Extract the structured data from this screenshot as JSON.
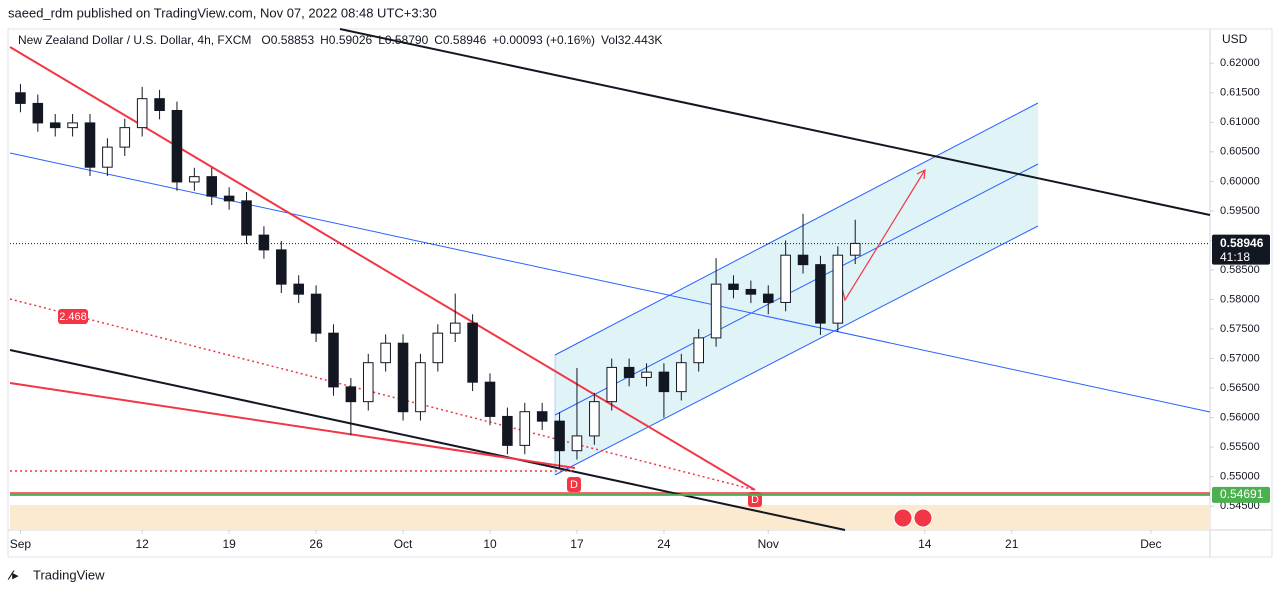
{
  "header": {
    "publisher": "saeed_rdm published on TradingView.com, Nov 07, 2022 08:48 UTC+3:30"
  },
  "footer": {
    "brand": "TradingView"
  },
  "chart_data": {
    "type": "candlestick",
    "title": "New Zealand Dollar / U.S. Dollar, 4h, FXCM",
    "ohlc_labels": [
      "O0.58853",
      "H0.59026",
      "L0.58790",
      "C0.58946",
      "+0.00093 (+0.16%)",
      "Vol32.443K"
    ],
    "currency": "USD",
    "up_color": "#ffffff",
    "down_color": "#131722",
    "open": [
      0.615,
      0.6132,
      0.6099,
      0.6091,
      0.6099,
      0.6024,
      0.6058,
      0.6091,
      0.614,
      0.612,
      0.5999,
      0.6008,
      0.5975,
      0.5967,
      0.5909,
      0.5884,
      0.5826,
      0.5809,
      0.5743,
      0.5652,
      0.5627,
      0.5693,
      0.5726,
      0.561,
      0.5693,
      0.5743,
      0.576,
      0.566,
      0.5602,
      0.5553,
      0.561,
      0.5594,
      0.5544,
      0.5569,
      0.5627,
      0.5685,
      0.5668,
      0.5677,
      0.5644,
      0.5693,
      0.5735,
      0.5826,
      0.5817,
      0.5809,
      0.5795,
      0.5875,
      0.5859,
      0.576,
      0.5875
    ],
    "high": [
      0.6165,
      0.6147,
      0.6114,
      0.6114,
      0.6114,
      0.6073,
      0.6106,
      0.616,
      0.6155,
      0.6135,
      0.6023,
      0.6023,
      0.599,
      0.5982,
      0.5924,
      0.5899,
      0.5841,
      0.5824,
      0.5758,
      0.5667,
      0.5708,
      0.5741,
      0.5741,
      0.5708,
      0.5758,
      0.581,
      0.5775,
      0.5675,
      0.5617,
      0.5625,
      0.5625,
      0.5609,
      0.5684,
      0.5642,
      0.57,
      0.57,
      0.5692,
      0.5692,
      0.5708,
      0.575,
      0.587,
      0.5841,
      0.5832,
      0.5824,
      0.59,
      0.5945,
      0.5874,
      0.589,
      0.5935
    ],
    "low": [
      0.6117,
      0.6084,
      0.6076,
      0.6076,
      0.6009,
      0.6009,
      0.6043,
      0.6076,
      0.6105,
      0.5984,
      0.5984,
      0.596,
      0.5952,
      0.5894,
      0.5869,
      0.5811,
      0.5794,
      0.5728,
      0.5637,
      0.557,
      0.5612,
      0.5678,
      0.5595,
      0.5595,
      0.5678,
      0.5728,
      0.5645,
      0.5587,
      0.5538,
      0.5538,
      0.5579,
      0.5512,
      0.5529,
      0.5554,
      0.5612,
      0.5653,
      0.5653,
      0.56,
      0.5629,
      0.5678,
      0.572,
      0.5802,
      0.5794,
      0.5775,
      0.578,
      0.5844,
      0.574,
      0.5745,
      0.586
    ],
    "close": [
      0.6132,
      0.6099,
      0.6091,
      0.6099,
      0.6024,
      0.6058,
      0.6091,
      0.614,
      0.612,
      0.5999,
      0.6008,
      0.5975,
      0.5967,
      0.5909,
      0.5884,
      0.5826,
      0.5809,
      0.5743,
      0.5652,
      0.5627,
      0.5693,
      0.5726,
      0.561,
      0.5693,
      0.5743,
      0.576,
      0.566,
      0.5602,
      0.5553,
      0.561,
      0.5594,
      0.5544,
      0.5569,
      0.5627,
      0.5685,
      0.5668,
      0.5677,
      0.5644,
      0.5693,
      0.5735,
      0.5826,
      0.5817,
      0.5809,
      0.5795,
      0.5875,
      0.5859,
      0.576,
      0.5875,
      0.5895
    ],
    "xlim": [
      -0.6,
      68.4
    ],
    "xticks": [
      {
        "value": 0,
        "label": "Sep"
      },
      {
        "value": 7,
        "label": "12"
      },
      {
        "value": 12,
        "label": "19"
      },
      {
        "value": 17,
        "label": "26"
      },
      {
        "value": 22,
        "label": "Oct"
      },
      {
        "value": 27,
        "label": "10"
      },
      {
        "value": 32,
        "label": "17"
      },
      {
        "value": 37,
        "label": "24"
      },
      {
        "value": 43,
        "label": "Nov"
      },
      {
        "value": 52,
        "label": "14"
      },
      {
        "value": 57,
        "label": "21"
      },
      {
        "value": 65,
        "label": "Dec"
      }
    ],
    "ylim": [
      0.54097,
      0.62563
    ],
    "yticks": [
      {
        "value": 0.545,
        "label": "0.54500"
      },
      {
        "value": 0.55,
        "label": "0.55000"
      },
      {
        "value": 0.555,
        "label": "0.55500"
      },
      {
        "value": 0.56,
        "label": "0.56000"
      },
      {
        "value": 0.565,
        "label": "0.56500"
      },
      {
        "value": 0.57,
        "label": "0.57000"
      },
      {
        "value": 0.575,
        "label": "0.57500"
      },
      {
        "value": 0.58,
        "label": "0.58000"
      },
      {
        "value": 0.585,
        "label": "0.58500"
      },
      {
        "value": 0.59,
        "label": "0.59000"
      },
      {
        "value": 0.595,
        "label": "0.59500"
      },
      {
        "value": 0.6,
        "label": "0.60000"
      },
      {
        "value": 0.605,
        "label": "0.60500"
      },
      {
        "value": 0.61,
        "label": "0.61000"
      },
      {
        "value": 0.615,
        "label": "0.61500"
      },
      {
        "value": 0.62,
        "label": "0.62000"
      }
    ],
    "last_price": {
      "value": 0.58946,
      "label": "0.58946",
      "countdown": "41:18"
    },
    "level": {
      "value": 0.54691,
      "label": "0.54691",
      "color": "#4caf50"
    },
    "annotations": {
      "ratio": "2.468",
      "dividend_1": "D",
      "dividend_2": "D"
    }
  }
}
